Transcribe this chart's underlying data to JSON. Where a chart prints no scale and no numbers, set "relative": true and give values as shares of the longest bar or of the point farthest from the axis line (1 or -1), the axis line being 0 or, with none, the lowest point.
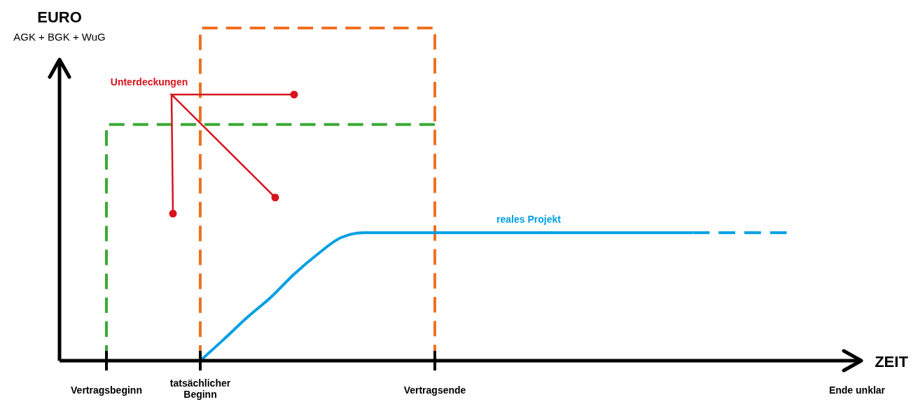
{
  "chart_data": {
    "type": "line",
    "relative": true,
    "xlabel": "ZEIT",
    "ylabel": "EURO",
    "annotations": [
      "AGK + BGK + WuG",
      "Unterdeckungen"
    ],
    "categories": [
      null,
      null,
      "Vertragsbeginn",
      null,
      null,
      null,
      "tatsächlicher Beginn",
      null,
      null,
      null,
      null,
      null,
      null,
      null,
      null,
      null,
      "Vertragsende",
      null,
      null,
      null,
      null,
      null,
      null,
      null,
      null,
      null,
      null,
      null,
      null,
      null,
      null,
      null,
      null,
      null,
      "Ende unklar"
    ],
    "legend": false,
    "grid": false,
    "series": [
      {
        "type": "step",
        "color": "#3aa935",
        "line_style": "dashed",
        "values": [
          null,
          null,
          0,
          0.71,
          0.71,
          0.71,
          0.71,
          0.71,
          0.71,
          0.71,
          0.71,
          0.71,
          0.71,
          0.71,
          0.71,
          0.71,
          0.71,
          null,
          null,
          null,
          null,
          null,
          null,
          null,
          null,
          null,
          null,
          null,
          null,
          null,
          null,
          null,
          null,
          null,
          null
        ]
      },
      {
        "type": "step",
        "color": "#f07122",
        "line_style": "dashed",
        "values": [
          null,
          null,
          null,
          null,
          null,
          null,
          0,
          1,
          1,
          1,
          1,
          1,
          1,
          1,
          1,
          1,
          1,
          0,
          null,
          null,
          null,
          null,
          null,
          null,
          null,
          null,
          null,
          null,
          null,
          null,
          null,
          null,
          null,
          null,
          null
        ]
      },
      {
        "name": "reales Projekt",
        "color": "#009fe3",
        "line_style": "solid",
        "values": [
          null,
          null,
          null,
          null,
          null,
          null,
          0,
          0.064,
          0.13,
          0.19,
          0.26,
          0.32,
          0.37,
          0.385,
          0.385,
          0.385,
          0.385,
          0.385,
          0.385,
          0.385,
          0.385,
          0.385,
          0.385,
          0.385,
          0.385,
          0.385,
          0.385,
          0.385,
          null,
          null,
          null,
          null,
          null,
          null,
          null
        ]
      },
      {
        "color": "#009fe3",
        "line_style": "dashed",
        "values": [
          null,
          null,
          null,
          null,
          null,
          null,
          null,
          null,
          null,
          null,
          null,
          null,
          null,
          null,
          null,
          null,
          null,
          null,
          null,
          null,
          null,
          null,
          null,
          null,
          null,
          null,
          null,
          0.385,
          0.385,
          0.385,
          0.385,
          0.385,
          null,
          null,
          null
        ]
      }
    ]
  }
}
